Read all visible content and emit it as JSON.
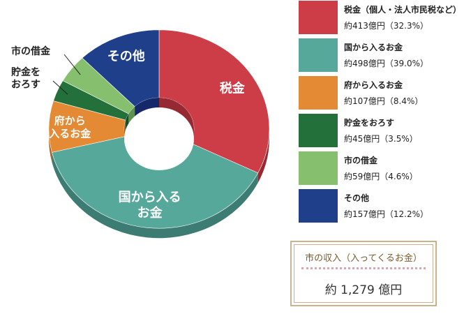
{
  "chart_data": {
    "type": "pie",
    "style": "3d-donut",
    "categories": [
      "税金（個人・法人市民税など）",
      "国から入るお金",
      "府から入るお金",
      "貯金をおろす",
      "市の借金",
      "その他"
    ],
    "values": [
      413,
      498,
      107,
      45,
      59,
      157
    ],
    "value_labels": [
      "約413億円（32.3%）",
      "約498億円（39.0%）",
      "約107億円（8.4%）",
      "約45億円（3.5%）",
      "約59億円（4.6%）",
      "約157億円（12.2%）"
    ],
    "slice_labels": [
      [
        "税金"
      ],
      [
        "国から入る",
        "お金"
      ],
      [
        "府から",
        "入るお金"
      ],
      [
        "貯金を",
        "おろす"
      ],
      [
        "市の借金"
      ],
      [
        "その他"
      ]
    ],
    "colors": [
      "#cc3d47",
      "#56a89a",
      "#e58a34",
      "#23703b",
      "#86c06e",
      "#1f3f8a"
    ],
    "side_colors": [
      "#962a33",
      "#3d7c72",
      "#ad6420",
      "#154d28",
      "#5f9150",
      "#15296a"
    ],
    "unit": "億円"
  },
  "legend": [
    {
      "name": "税金（個人・法人市民税など）",
      "value": "約413億円（32.3%）",
      "color": "#cc3d47"
    },
    {
      "name": "国から入るお金",
      "value": "約498億円（39.0%）",
      "color": "#56a89a"
    },
    {
      "name": "府から入るお金",
      "value": "約107億円（8.4%）",
      "color": "#e58a34"
    },
    {
      "name": "貯金をおろす",
      "value": "約45億円（3.5%）",
      "color": "#23703b"
    },
    {
      "name": "市の借金",
      "value": "約59億円（4.6%）",
      "color": "#86c06e"
    },
    {
      "name": "その他",
      "value": "約157億円（12.2%）",
      "color": "#1f3f8a"
    }
  ],
  "summary": {
    "title": "市の収入（入ってくるお金）",
    "total": "約 1,279 億円"
  }
}
